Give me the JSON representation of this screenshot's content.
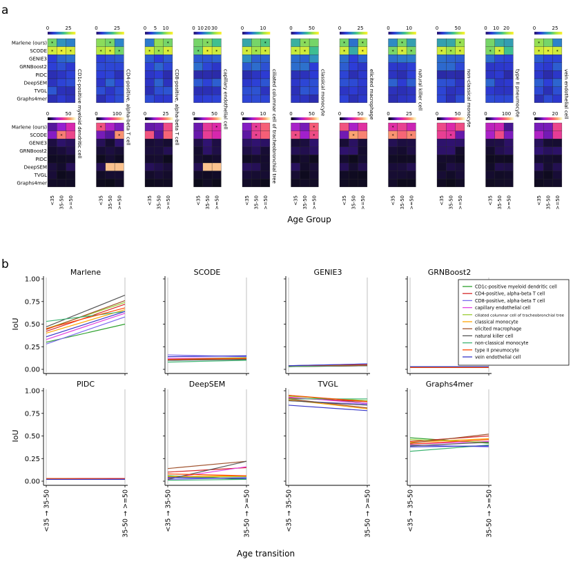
{
  "panel_labels": {
    "a": "a",
    "b": "b"
  },
  "chart_data": [
    {
      "type": "heatmap",
      "title": "",
      "xlabel": "Age Group",
      "rows": [
        "Marlene (ours)",
        "SCODE",
        "GENIE3",
        "GRNBoost2",
        "PIDC",
        "DeepSEM",
        "TVGL",
        "Graphs4mer"
      ],
      "age_groups": [
        "<35",
        "35-50",
        ">=50"
      ],
      "significance_marker": "*",
      "cell_types": [
        {
          "name": "CD1c-positive myeloid dendritic cell",
          "top_ticks": [
            "0",
            "25"
          ],
          "bottom_ticks": [
            "0",
            "50"
          ]
        },
        {
          "name": "CD4-positive, alpha-beta T cell",
          "top_ticks": [
            "0",
            "25"
          ],
          "bottom_ticks": [
            "0",
            "100"
          ]
        },
        {
          "name": "CD8-positive, alpha-beta T cell",
          "top_ticks": [
            "0",
            "5",
            "10"
          ],
          "bottom_ticks": [
            "0",
            "25"
          ]
        },
        {
          "name": "capillary endothelial cell",
          "top_ticks": [
            "0",
            "10",
            "20",
            "30"
          ],
          "bottom_ticks": [
            "0",
            "50"
          ]
        },
        {
          "name": "ciliated columnar cell of tracheobronchial tree",
          "top_ticks": [
            "0",
            "10"
          ],
          "bottom_ticks": [
            "0",
            "10"
          ]
        },
        {
          "name": "classical monocyte",
          "top_ticks": [
            "0",
            "50"
          ],
          "bottom_ticks": [
            "0",
            "50"
          ]
        },
        {
          "name": "elicited macrophage",
          "top_ticks": [
            "0",
            "25"
          ],
          "bottom_ticks": [
            "0",
            "50"
          ]
        },
        {
          "name": "natural killer cell",
          "top_ticks": [
            "0",
            "10"
          ],
          "bottom_ticks": [
            "0",
            "25"
          ]
        },
        {
          "name": "non-classical monocyte",
          "top_ticks": [
            "0",
            "50"
          ],
          "bottom_ticks": [
            "0",
            "50"
          ]
        },
        {
          "name": "type II pneumocyte",
          "top_ticks": [
            "0",
            "10",
            "20"
          ],
          "bottom_ticks": [
            "0",
            "100"
          ]
        },
        {
          "name": "vein endothelial cell",
          "top_ticks": [
            "0",
            "25"
          ],
          "bottom_ticks": [
            "0",
            "20"
          ]
        }
      ]
    },
    {
      "type": "line",
      "xlabel": "Age transition",
      "ylabel": "IoU",
      "x": [
        "<35 → 35-50",
        "35-50 → >=50"
      ],
      "ylim": [
        0,
        1
      ],
      "yticks": [
        "0.00",
        "0.25",
        "0.50",
        "0.75",
        "1.00"
      ],
      "legend_position": "right of GRNBoost2 panel",
      "legend": [
        {
          "name": "CD1c-positive myeloid dendritic cell",
          "color": "#2ca02c"
        },
        {
          "name": "CD4-positive, alpha-beta T cell",
          "color": "#d62728"
        },
        {
          "name": "CD8-positive, alpha-beta T cell",
          "color": "#7b68ee"
        },
        {
          "name": "capillary endothelial cell",
          "color": "#e040e0"
        },
        {
          "name": "ciliated columnar cell of tracheobronchial tree",
          "color": "#9acd32"
        },
        {
          "name": "classical monocyte",
          "color": "#ffa500"
        },
        {
          "name": "elicited macrophage",
          "color": "#a0522d"
        },
        {
          "name": "natural killer cell",
          "color": "#555555"
        },
        {
          "name": "non-classical monocyte",
          "color": "#3cb371"
        },
        {
          "name": "type II pneumocyte",
          "color": "#ff4500"
        },
        {
          "name": "vein endothelial cell",
          "color": "#3535c8"
        }
      ],
      "methods": [
        {
          "name": "Marlene",
          "series": [
            [
              0.3,
              0.5
            ],
            [
              0.42,
              0.72
            ],
            [
              0.28,
              0.58
            ],
            [
              0.33,
              0.62
            ],
            [
              0.45,
              0.74
            ],
            [
              0.4,
              0.66
            ],
            [
              0.44,
              0.76
            ],
            [
              0.47,
              0.82
            ],
            [
              0.53,
              0.64
            ],
            [
              0.45,
              0.68
            ],
            [
              0.36,
              0.64
            ]
          ]
        },
        {
          "name": "SCODE",
          "series": [
            [
              0.11,
              0.11
            ],
            [
              0.1,
              0.12
            ],
            [
              0.16,
              0.14
            ],
            [
              0.12,
              0.13
            ],
            [
              0.11,
              0.13
            ],
            [
              0.11,
              0.12
            ],
            [
              0.1,
              0.12
            ],
            [
              0.1,
              0.11
            ],
            [
              0.08,
              0.1
            ],
            [
              0.11,
              0.12
            ],
            [
              0.14,
              0.15
            ]
          ]
        },
        {
          "name": "GENIE3",
          "series": [
            [
              0.03,
              0.05
            ],
            [
              0.03,
              0.04
            ],
            [
              0.04,
              0.06
            ],
            [
              0.03,
              0.05
            ],
            [
              0.03,
              0.04
            ],
            [
              0.03,
              0.05
            ],
            [
              0.04,
              0.05
            ],
            [
              0.03,
              0.04
            ],
            [
              0.03,
              0.05
            ],
            [
              0.04,
              0.05
            ],
            [
              0.04,
              0.06
            ]
          ]
        },
        {
          "name": "GRNBoost2",
          "series": [
            [
              0.02,
              0.02
            ],
            [
              0.02,
              0.03
            ],
            [
              0.02,
              0.02
            ],
            [
              0.02,
              0.02
            ],
            [
              0.02,
              0.02
            ],
            [
              0.02,
              0.03
            ],
            [
              0.02,
              0.02
            ],
            [
              0.02,
              0.02
            ],
            [
              0.02,
              0.02
            ],
            [
              0.02,
              0.02
            ],
            [
              0.03,
              0.03
            ]
          ]
        },
        {
          "name": "PIDC",
          "series": [
            [
              0.02,
              0.02
            ],
            [
              0.03,
              0.03
            ],
            [
              0.02,
              0.02
            ],
            [
              0.02,
              0.02
            ],
            [
              0.03,
              0.02
            ],
            [
              0.02,
              0.02
            ],
            [
              0.03,
              0.02
            ],
            [
              0.02,
              0.02
            ],
            [
              0.02,
              0.02
            ],
            [
              0.03,
              0.02
            ],
            [
              0.02,
              0.02
            ]
          ]
        },
        {
          "name": "DeepSEM",
          "series": [
            [
              0.06,
              0.02
            ],
            [
              0.1,
              0.15
            ],
            [
              0.02,
              0.04
            ],
            [
              0.03,
              0.16
            ],
            [
              0.04,
              0.05
            ],
            [
              0.05,
              0.06
            ],
            [
              0.14,
              0.22
            ],
            [
              0.02,
              0.22
            ],
            [
              0.01,
              0.02
            ],
            [
              0.08,
              0.06
            ],
            [
              0.04,
              0.03
            ]
          ]
        },
        {
          "name": "TVGL",
          "series": [
            [
              0.95,
              0.86
            ],
            [
              0.92,
              0.88
            ],
            [
              0.89,
              0.85
            ],
            [
              0.93,
              0.86
            ],
            [
              0.94,
              0.89
            ],
            [
              0.9,
              0.8
            ],
            [
              0.91,
              0.81
            ],
            [
              0.89,
              0.84
            ],
            [
              0.91,
              0.91
            ],
            [
              0.95,
              0.88
            ],
            [
              0.84,
              0.78
            ]
          ]
        },
        {
          "name": "Graphs4mer",
          "series": [
            [
              0.48,
              0.42
            ],
            [
              0.44,
              0.5
            ],
            [
              0.4,
              0.38
            ],
            [
              0.41,
              0.44
            ],
            [
              0.46,
              0.43
            ],
            [
              0.43,
              0.47
            ],
            [
              0.42,
              0.52
            ],
            [
              0.39,
              0.43
            ],
            [
              0.33,
              0.4
            ],
            [
              0.41,
              0.46
            ],
            [
              0.38,
              0.39
            ]
          ]
        }
      ]
    }
  ]
}
